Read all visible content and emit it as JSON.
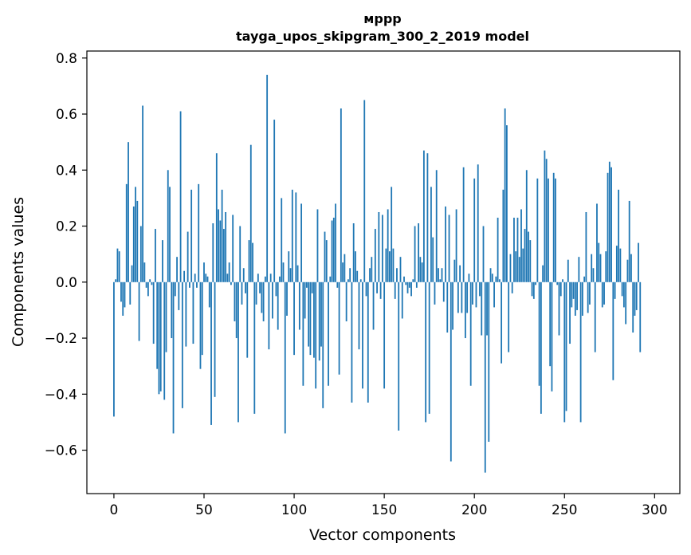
{
  "chart_data": {
    "type": "bar",
    "title_line1": "мррр",
    "title_line2": "tayga_upos_skipgram_300_2_2019 model",
    "xlabel": "Vector components",
    "ylabel": "Components values",
    "xlim": [
      -15,
      314
    ],
    "ylim": [
      -0.755,
      0.825
    ],
    "xticks": [
      0,
      50,
      100,
      150,
      200,
      250,
      300
    ],
    "xtick_labels": [
      "0",
      "50",
      "100",
      "150",
      "200",
      "250",
      "300"
    ],
    "yticks": [
      0.8,
      0.6,
      0.4,
      0.2,
      0.0,
      -0.2,
      -0.4,
      -0.6
    ],
    "ytick_labels": [
      "0.8",
      "0.6",
      "0.4",
      "0.2",
      "0.0",
      "−0.2",
      "−0.4",
      "−0.6"
    ],
    "bar_color": "#1f77b4",
    "grid": false,
    "values": [
      -0.48,
      0.01,
      0.12,
      0.11,
      -0.07,
      -0.12,
      -0.09,
      0.35,
      0.5,
      -0.08,
      0.06,
      0.27,
      0.34,
      0.29,
      -0.21,
      0.2,
      0.63,
      0.07,
      -0.02,
      -0.05,
      0.01,
      -0.01,
      -0.22,
      0.19,
      -0.31,
      -0.4,
      -0.39,
      0.15,
      -0.42,
      -0.25,
      0.4,
      0.34,
      -0.2,
      -0.54,
      -0.05,
      0.09,
      -0.1,
      0.61,
      -0.45,
      0.04,
      -0.23,
      0.18,
      -0.02,
      0.33,
      -0.22,
      0.03,
      -0.02,
      0.35,
      -0.31,
      -0.26,
      0.07,
      0.03,
      0.02,
      -0.09,
      -0.51,
      0.21,
      -0.41,
      0.46,
      0.26,
      0.22,
      0.33,
      0.19,
      0.25,
      0.03,
      0.07,
      -0.01,
      0.24,
      -0.14,
      -0.2,
      -0.5,
      0.2,
      -0.08,
      0.05,
      -0.04,
      -0.27,
      0.15,
      0.49,
      0.14,
      -0.47,
      -0.08,
      0.03,
      -0.04,
      -0.11,
      -0.14,
      0.02,
      0.74,
      -0.24,
      0.03,
      -0.13,
      0.58,
      -0.05,
      -0.17,
      0.02,
      0.3,
      0.07,
      -0.54,
      -0.12,
      0.11,
      0.05,
      0.33,
      -0.26,
      0.32,
      0.06,
      -0.17,
      0.28,
      -0.37,
      -0.13,
      -0.02,
      -0.23,
      -0.26,
      -0.04,
      -0.27,
      -0.38,
      0.26,
      -0.28,
      -0.23,
      -0.45,
      0.18,
      0.15,
      -0.37,
      0.02,
      0.22,
      0.23,
      0.28,
      -0.02,
      -0.33,
      0.62,
      0.07,
      0.1,
      -0.14,
      0.01,
      0.05,
      -0.43,
      0.21,
      0.11,
      0.04,
      -0.24,
      0.01,
      -0.38,
      0.65,
      -0.05,
      -0.43,
      0.05,
      0.09,
      -0.17,
      0.19,
      -0.04,
      0.25,
      -0.06,
      0.24,
      -0.38,
      0.12,
      0.26,
      0.11,
      0.34,
      0.12,
      -0.06,
      0.05,
      -0.53,
      0.09,
      -0.13,
      0.02,
      -0.01,
      -0.04,
      -0.02,
      -0.05,
      0.01,
      0.2,
      -0.02,
      0.21,
      0.09,
      0.07,
      0.47,
      -0.5,
      0.46,
      -0.47,
      0.34,
      0.16,
      -0.08,
      0.4,
      0.05,
      0.01,
      0.05,
      -0.07,
      0.27,
      -0.18,
      0.24,
      -0.64,
      -0.17,
      0.08,
      0.26,
      -0.11,
      0.06,
      -0.11,
      0.41,
      -0.2,
      -0.11,
      0.03,
      -0.37,
      -0.08,
      0.37,
      -0.09,
      0.42,
      -0.05,
      -0.19,
      0.2,
      -0.68,
      -0.19,
      -0.57,
      0.05,
      0.03,
      -0.09,
      0.02,
      0.23,
      0.01,
      -0.29,
      0.33,
      0.62,
      0.56,
      -0.25,
      0.1,
      -0.04,
      0.23,
      0.11,
      0.23,
      0.09,
      0.26,
      0.12,
      0.19,
      0.4,
      0.18,
      0.15,
      -0.05,
      -0.06,
      -0.01,
      0.37,
      -0.37,
      -0.47,
      0.06,
      0.47,
      0.44,
      0.37,
      -0.3,
      -0.39,
      0.39,
      0.37,
      -0.01,
      -0.19,
      -0.05,
      0.01,
      -0.5,
      -0.46,
      0.08,
      -0.22,
      -0.09,
      -0.06,
      -0.12,
      -0.1,
      0.09,
      -0.5,
      -0.12,
      0.02,
      0.25,
      -0.11,
      -0.08,
      0.1,
      0.05,
      -0.25,
      0.28,
      0.14,
      0.1,
      -0.09,
      -0.08,
      0.11,
      0.39,
      0.43,
      0.41,
      -0.35,
      -0.06,
      0.13,
      0.33,
      0.12,
      -0.05,
      -0.09,
      -0.15,
      0.08,
      0.29,
      0.1,
      -0.18,
      -0.12,
      -0.1,
      0.14,
      -0.25
    ]
  }
}
